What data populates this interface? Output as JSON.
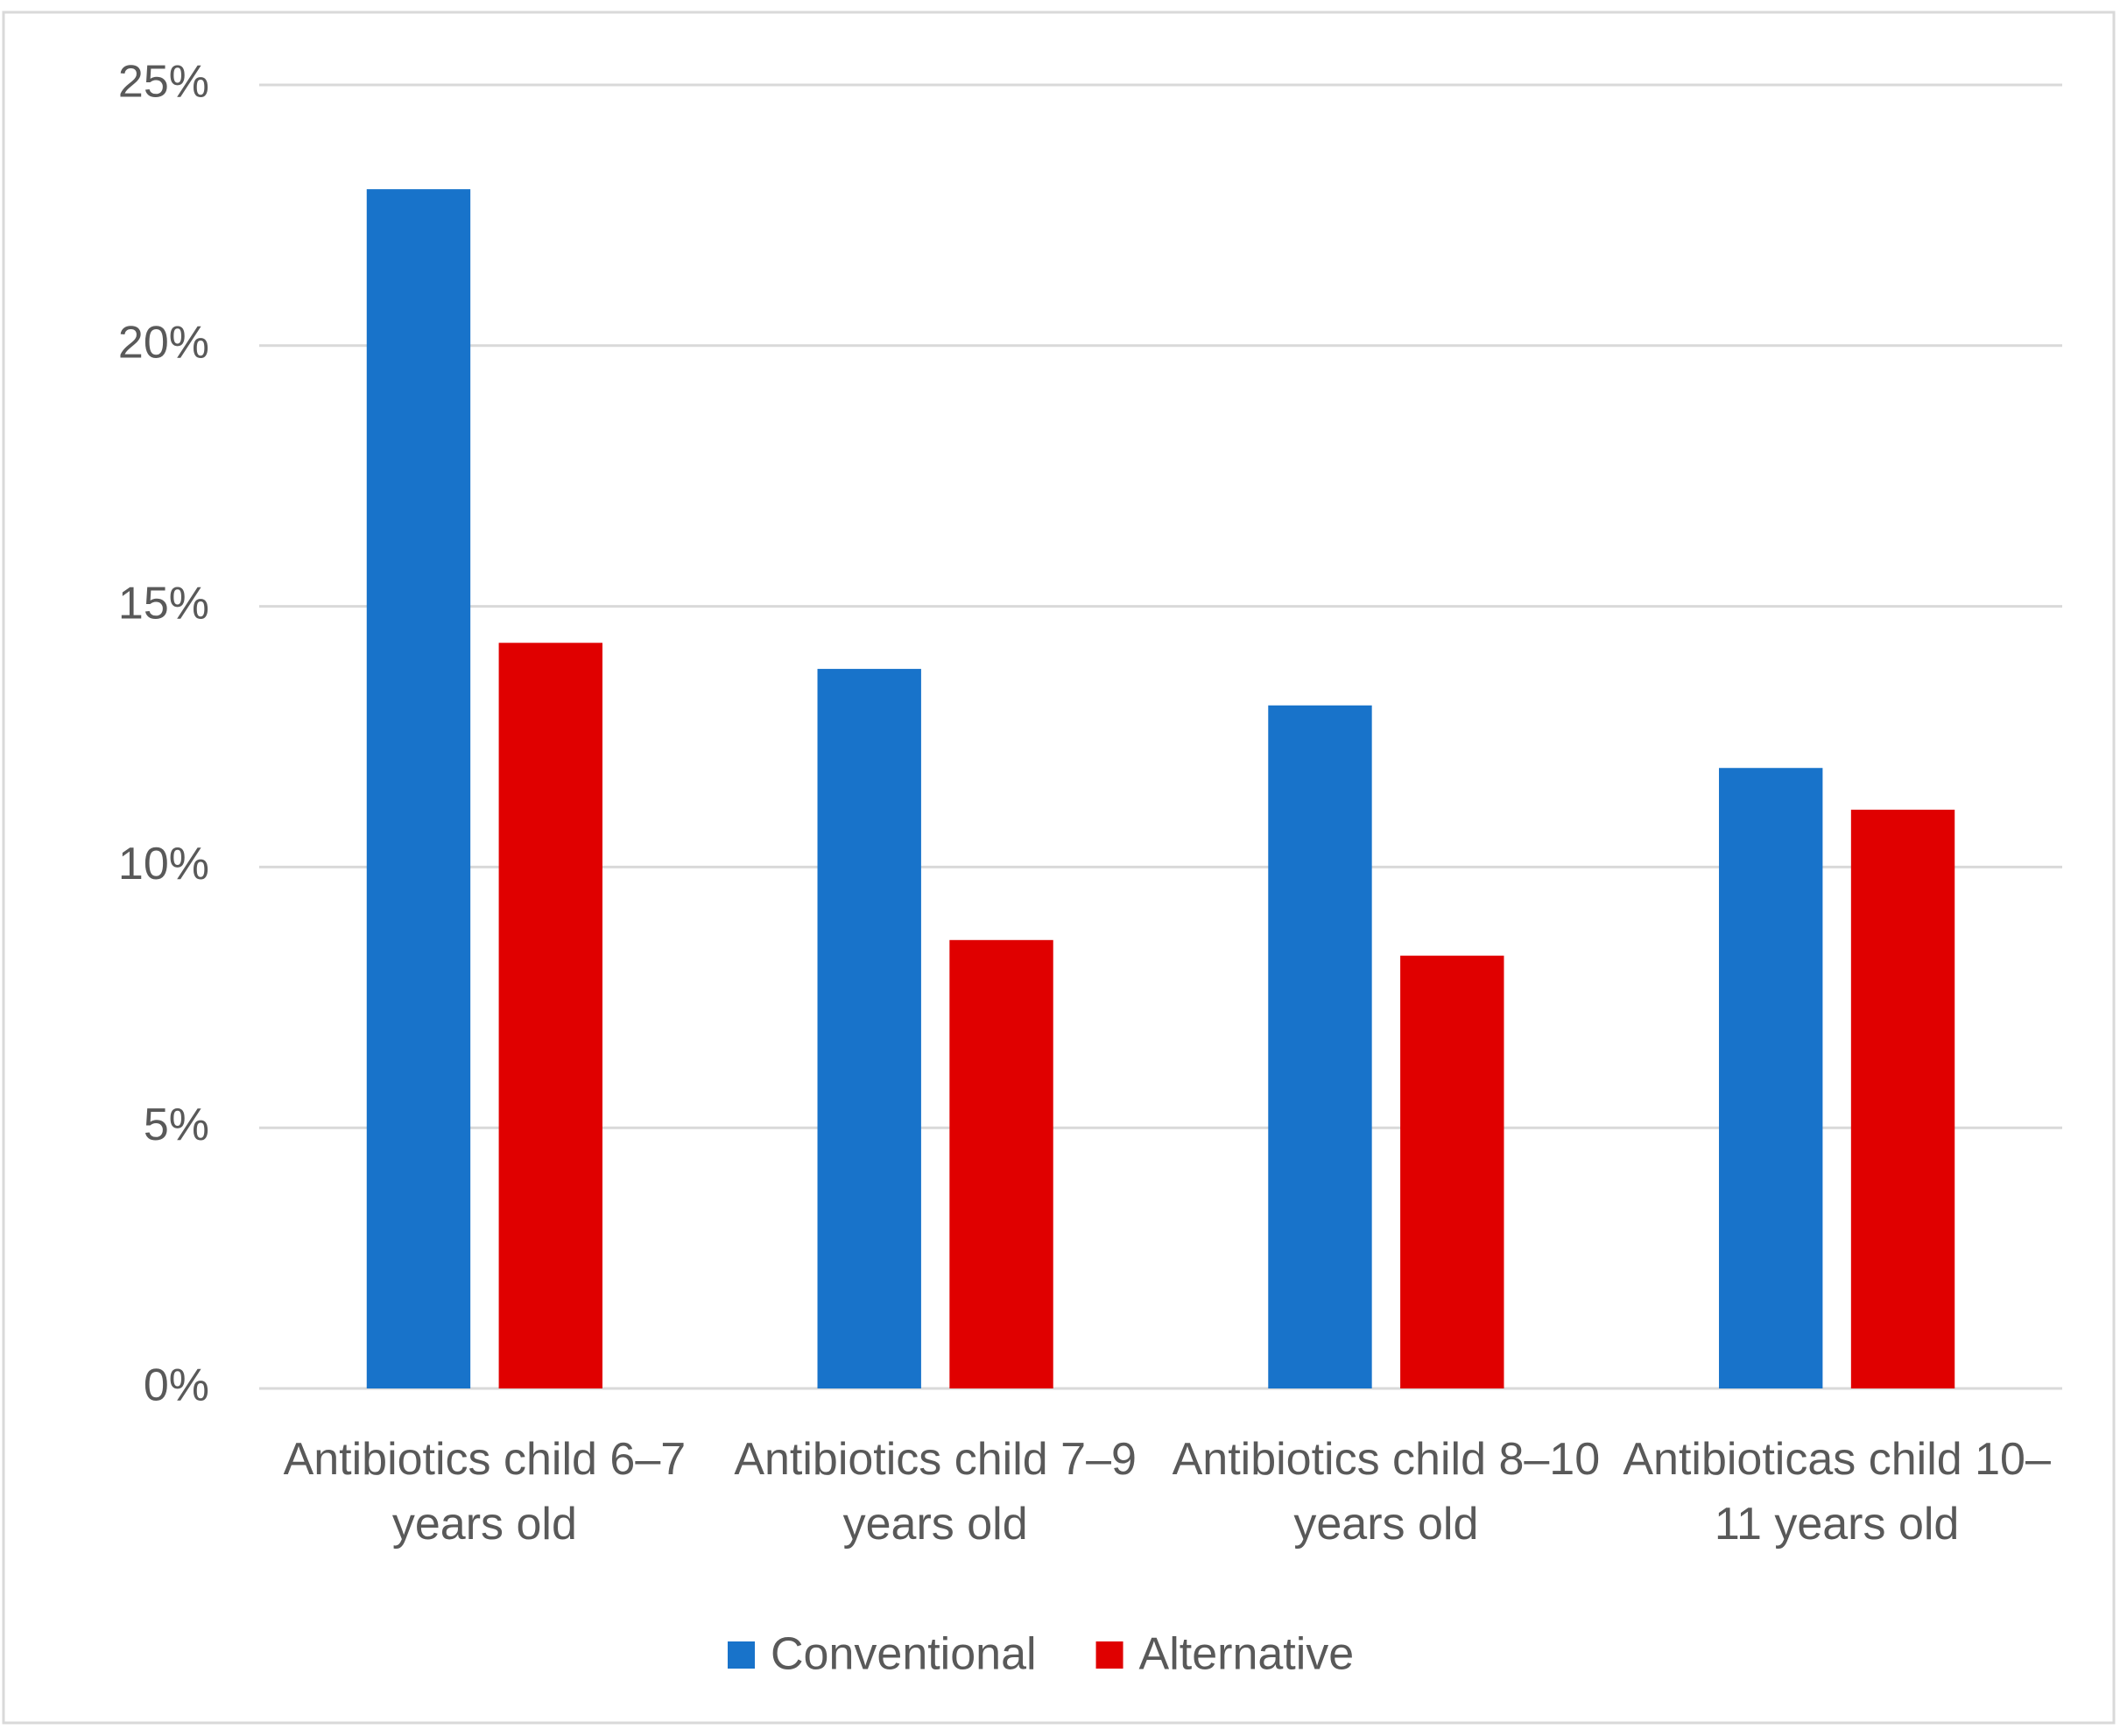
{
  "chart_data": {
    "type": "bar",
    "categories": [
      "Antibiotics child 6–7 years old",
      "Antibiotics child 7–9 years old",
      "Antibiotics child 8–10 years old",
      "Antibioticas child 10–11 years old"
    ],
    "series": [
      {
        "name": "Conventional",
        "color": "#1873ca",
        "values": [
          23.0,
          13.8,
          13.1,
          11.9
        ]
      },
      {
        "name": "Alternative",
        "color": "#e00000",
        "values": [
          14.3,
          8.6,
          8.3,
          11.1
        ]
      }
    ],
    "ylim": [
      0,
      25
    ],
    "yticks": [
      {
        "value": 0,
        "label": "0%"
      },
      {
        "value": 5,
        "label": "5%"
      },
      {
        "value": 10,
        "label": "10%"
      },
      {
        "value": 15,
        "label": "15%"
      },
      {
        "value": 20,
        "label": "20%"
      },
      {
        "value": 25,
        "label": "25%"
      }
    ],
    "grid": true,
    "legend": "bottom"
  }
}
